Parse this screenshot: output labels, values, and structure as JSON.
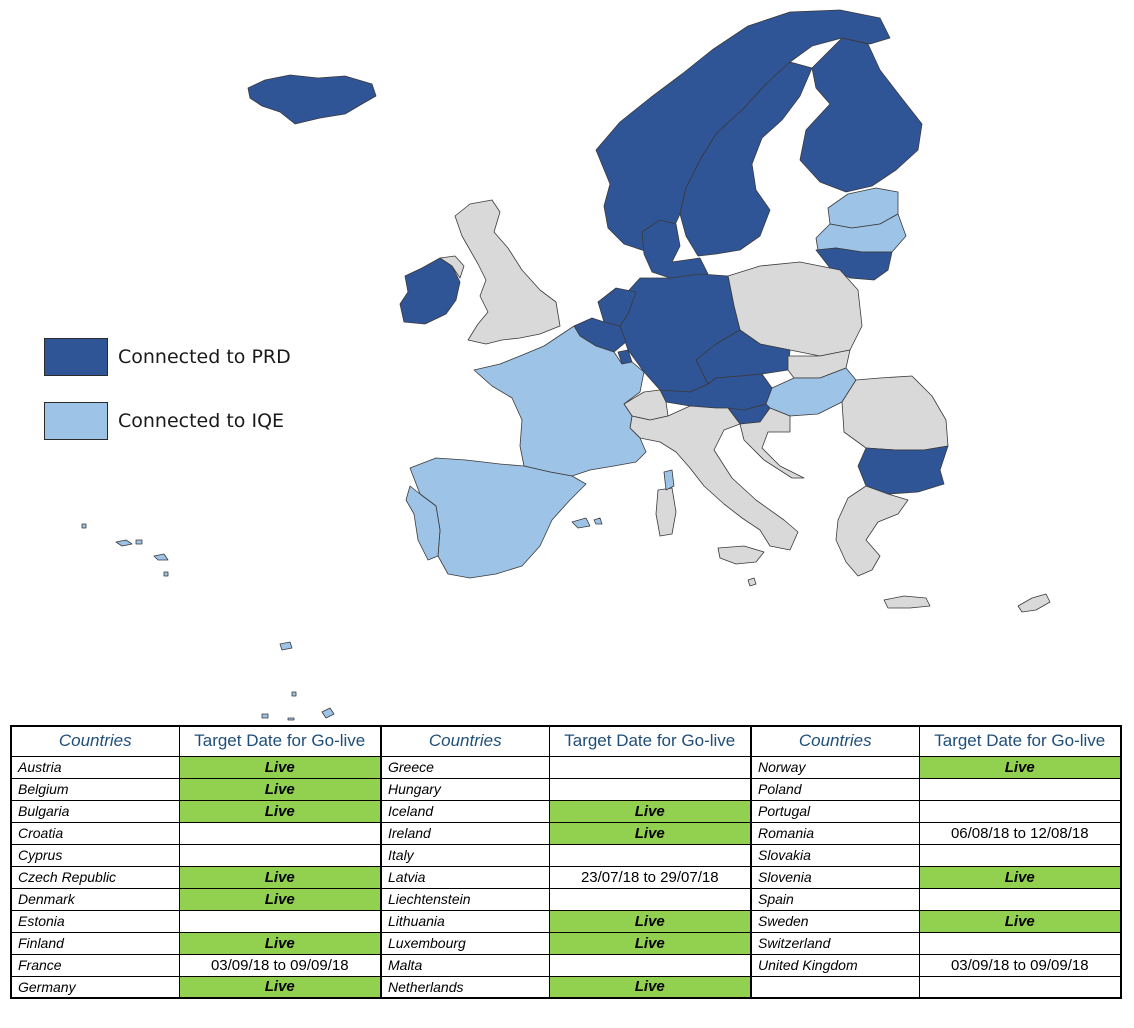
{
  "colors": {
    "prd": "#2f5597",
    "iqe": "#9dc3e6",
    "other": "#d9d9d9",
    "live": "#92d050",
    "header_text": "#1f4e79"
  },
  "legend": [
    {
      "label": "Connected to PRD",
      "color": "#2f5597"
    },
    {
      "label": "Connected to IQE",
      "color": "#9dc3e6"
    }
  ],
  "map_regions": {
    "prd": [
      "Iceland",
      "Ireland",
      "Norway",
      "Sweden",
      "Finland",
      "Denmark",
      "Germany",
      "Netherlands",
      "Belgium",
      "Luxembourg",
      "Czech Republic",
      "Austria",
      "Slovenia",
      "Lithuania",
      "Bulgaria"
    ],
    "iqe": [
      "France",
      "Spain",
      "Portugal",
      "Estonia",
      "Latvia",
      "Hungary",
      "Corsica"
    ],
    "other": [
      "United Kingdom",
      "Poland",
      "Romania",
      "Slovakia",
      "Switzerland",
      "Italy",
      "Croatia",
      "Greece",
      "Cyprus",
      "Malta"
    ]
  },
  "table": {
    "headers": {
      "countries": "Countries",
      "target": "Target Date for Go-live"
    },
    "rows": [
      [
        [
          "Austria",
          "Live"
        ],
        [
          "Greece",
          ""
        ],
        [
          "Norway",
          "Live"
        ]
      ],
      [
        [
          "Belgium",
          "Live"
        ],
        [
          "Hungary",
          ""
        ],
        [
          "Poland",
          ""
        ]
      ],
      [
        [
          "Bulgaria",
          "Live"
        ],
        [
          "Iceland",
          "Live"
        ],
        [
          "Portugal",
          ""
        ]
      ],
      [
        [
          "Croatia",
          ""
        ],
        [
          "Ireland",
          "Live"
        ],
        [
          "Romania",
          "06/08/18 to 12/08/18"
        ]
      ],
      [
        [
          "Cyprus",
          ""
        ],
        [
          "Italy",
          ""
        ],
        [
          "Slovakia",
          ""
        ]
      ],
      [
        [
          "Czech Republic",
          "Live"
        ],
        [
          "Latvia",
          "23/07/18 to 29/07/18"
        ],
        [
          "Slovenia",
          "Live"
        ]
      ],
      [
        [
          "Denmark",
          "Live"
        ],
        [
          "Liechtenstein",
          ""
        ],
        [
          "Spain",
          ""
        ]
      ],
      [
        [
          "Estonia",
          ""
        ],
        [
          "Lithuania",
          "Live"
        ],
        [
          "Sweden",
          "Live"
        ]
      ],
      [
        [
          "Finland",
          "Live"
        ],
        [
          "Luxembourg",
          "Live"
        ],
        [
          "Switzerland",
          ""
        ]
      ],
      [
        [
          "France",
          "03/09/18 to 09/09/18"
        ],
        [
          "Malta",
          ""
        ],
        [
          "United Kingdom",
          "03/09/18 to 09/09/18"
        ]
      ],
      [
        [
          "Germany",
          "Live"
        ],
        [
          "Netherlands",
          "Live"
        ],
        [
          "",
          ""
        ]
      ]
    ]
  }
}
